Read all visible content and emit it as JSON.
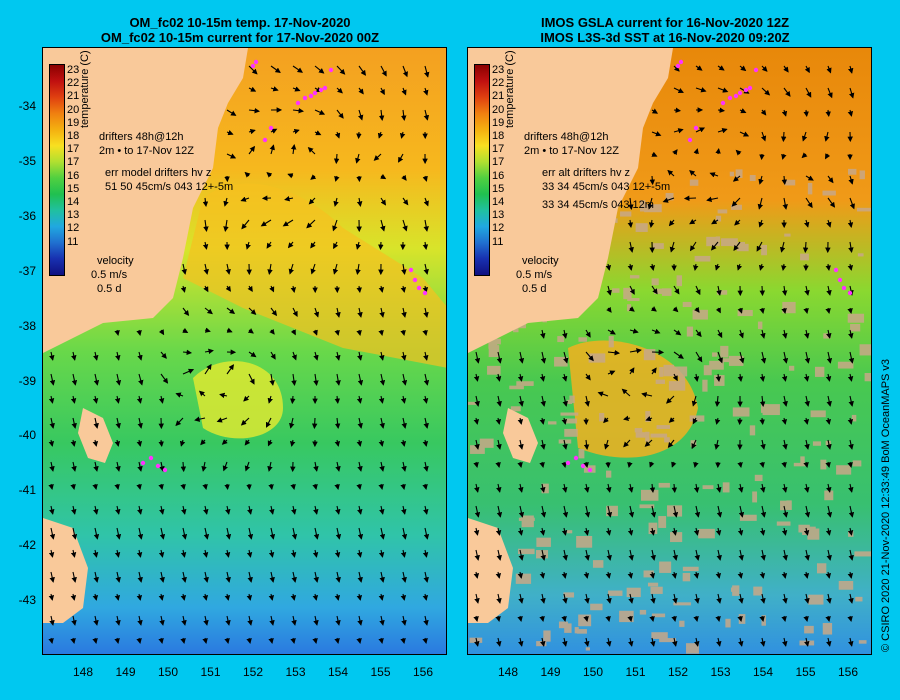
{
  "panels": {
    "left": {
      "title_line1": "OM_fc02 10-15m temp. 17-Nov-2020",
      "title_line2": "OM_fc02 10-15m current for 17-Nov-2020 00Z",
      "drifter_legend_line1": "drifters 48h@12h",
      "drifter_legend_line2": "2m • to 17-Nov 12Z",
      "err_line1": "err model drifters hv z",
      "err_line2": "51 50 45cm/s 043 12+-5m",
      "err_line3": ""
    },
    "right": {
      "title_line1": "IMOS GSLA current for 16-Nov-2020 12Z",
      "title_line2": "IMOS L3S-3d SST at 16-Nov-2020 09:20Z",
      "drifter_legend_line1": "drifters 48h@12h",
      "drifter_legend_line2": "2m • to 17-Nov 12Z",
      "err_line1": "err alt drifters hv z",
      "err_line2": "33 34 45cm/s 043 12+-5m",
      "err_line3": "33 34 45cm/s 043 12m"
    }
  },
  "colorbar": {
    "title": "temperature (C)",
    "labels": [
      "23",
      "22",
      "21",
      "20",
      "19",
      "18",
      "17",
      "17",
      "16",
      "15",
      "14",
      "13",
      "12",
      "11"
    ]
  },
  "velocity_legend": {
    "title": "velocity",
    "speed": "0.5 m/s",
    "time": "0.5 d"
  },
  "axes": {
    "lat_labels": [
      "-34",
      "-35",
      "-36",
      "-37",
      "-38",
      "-39",
      "-40",
      "-41",
      "-42",
      "-43"
    ],
    "lon_labels": [
      "148",
      "149",
      "150",
      "151",
      "152",
      "153",
      "154",
      "155",
      "156"
    ]
  },
  "credit": "© CSIRO 2020   21-Nov-2020 12:33:49 BoM OceanMAPS v3",
  "colors": {
    "background": "#00c8f0",
    "land": "#f9c99a",
    "drifter": "#ff33ff",
    "cloud_mask": "#c8a888"
  }
}
